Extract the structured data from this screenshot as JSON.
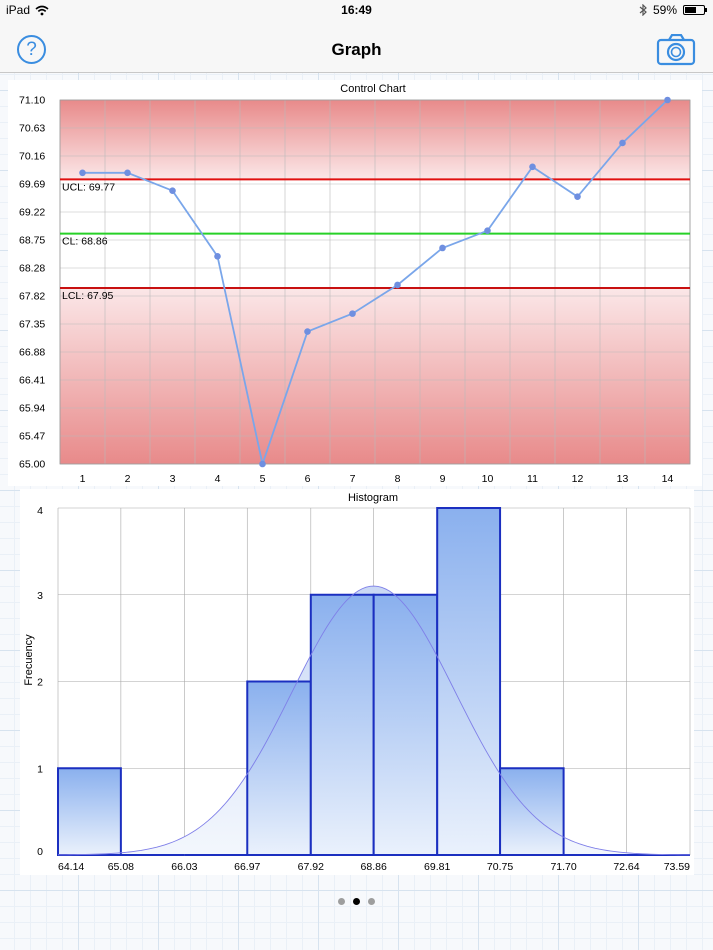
{
  "status_bar": {
    "device": "iPad",
    "time": "16:49",
    "battery": "59%",
    "battery_level": 0.59
  },
  "nav": {
    "title": "Graph",
    "help_icon": "question-circle-icon",
    "camera_icon": "camera-icon"
  },
  "control_chart": {
    "title": "Control Chart",
    "y_ticks": [
      "71.10",
      "70.63",
      "70.16",
      "69.69",
      "69.22",
      "68.75",
      "68.28",
      "67.82",
      "67.35",
      "66.88",
      "66.41",
      "65.94",
      "65.47",
      "65.00"
    ],
    "x_ticks": [
      "1",
      "2",
      "3",
      "4",
      "5",
      "6",
      "7",
      "8",
      "9",
      "10",
      "11",
      "12",
      "13",
      "14"
    ],
    "ucl_label": "UCL: 69.77",
    "cl_label": "CL: 68.86",
    "lcl_label": "LCL: 67.95",
    "colors": {
      "line": "#7aa6ea",
      "ucl": "#e01010",
      "cl": "#27d127",
      "lcl": "#c81010",
      "out_of_control_fill": "#e88a8a"
    }
  },
  "histogram": {
    "title": "Histogram",
    "ylabel": "Frecuency",
    "y_ticks": [
      "0",
      "1",
      "2",
      "3",
      "4"
    ],
    "x_ticks": [
      "64.14",
      "65.08",
      "66.03",
      "66.97",
      "67.92",
      "68.86",
      "69.81",
      "70.75",
      "71.70",
      "72.64",
      "73.59"
    ],
    "colors": {
      "bar_stroke": "#1b2fc0",
      "bar_fill_top": "#8ab0ee",
      "curve": "#7f7fe8"
    }
  },
  "pager": {
    "pages": 3,
    "active": 2
  },
  "chart_data": [
    {
      "type": "line",
      "title": "Control Chart",
      "x": [
        1,
        2,
        3,
        4,
        5,
        6,
        7,
        8,
        9,
        10,
        11,
        12,
        13,
        14
      ],
      "series": [
        {
          "values": [
            69.88,
            69.88,
            69.58,
            68.48,
            65.0,
            67.22,
            67.52,
            68.0,
            68.62,
            68.91,
            69.98,
            69.48,
            70.38,
            71.1
          ]
        }
      ],
      "ylim": [
        65.0,
        71.1
      ],
      "xlim": [
        0.5,
        14.5
      ],
      "control_limits": {
        "ucl": 69.77,
        "cl": 68.86,
        "lcl": 67.95
      },
      "grid": true
    },
    {
      "type": "bar",
      "title": "Histogram",
      "ylabel": "Frecuency",
      "bins": [
        [
          64.14,
          65.08
        ],
        [
          65.08,
          66.03
        ],
        [
          66.03,
          66.97
        ],
        [
          66.97,
          67.92
        ],
        [
          67.92,
          68.86
        ],
        [
          68.86,
          69.81
        ],
        [
          69.81,
          70.75
        ],
        [
          70.75,
          71.7
        ],
        [
          71.7,
          72.64
        ],
        [
          72.64,
          73.59
        ]
      ],
      "values": [
        1,
        0,
        0,
        2,
        3,
        3,
        4,
        1,
        0,
        0
      ],
      "normal_curve": {
        "mean": 68.86,
        "sd": 1.22,
        "peak": 3.1
      },
      "xlim": [
        64.14,
        73.59
      ],
      "ylim": [
        0,
        4
      ],
      "grid": true
    }
  ]
}
